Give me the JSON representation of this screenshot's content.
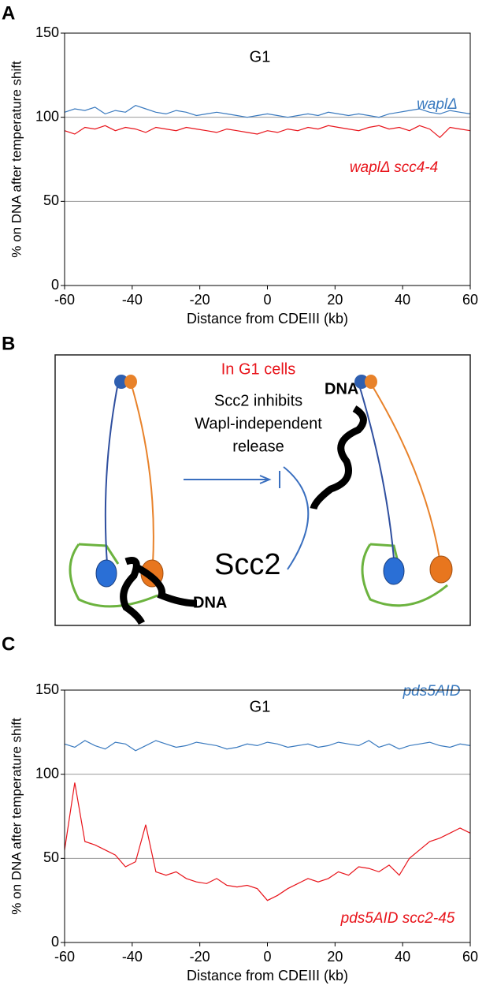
{
  "panel_labels": [
    "A",
    "B",
    "C"
  ],
  "chart_data": [
    {
      "type": "line",
      "title": "G1",
      "x_label": "Distance from CDEIII (kb)",
      "y_label": "% on DNA after temperature shift",
      "x": [
        -60,
        -57,
        -54,
        -51,
        -48,
        -45,
        -42,
        -39,
        -36,
        -33,
        -30,
        -27,
        -24,
        -21,
        -18,
        -15,
        -12,
        -9,
        -6,
        -3,
        0,
        3,
        6,
        9,
        12,
        15,
        18,
        21,
        24,
        27,
        30,
        33,
        36,
        39,
        42,
        45,
        48,
        51,
        54,
        57,
        60
      ],
      "series": [
        {
          "name": "waplΔ",
          "color": "#3a7abf",
          "values": [
            103,
            105,
            104,
            106,
            102,
            104,
            103,
            107,
            105,
            103,
            102,
            104,
            103,
            101,
            102,
            103,
            102,
            101,
            100,
            101,
            102,
            101,
            100,
            101,
            102,
            101,
            103,
            102,
            101,
            102,
            101,
            100,
            102,
            103,
            104,
            105,
            103,
            102,
            104,
            103,
            102
          ]
        },
        {
          "name": "waplΔ scc4-4",
          "color": "#e8141b",
          "values": [
            92,
            90,
            94,
            93,
            95,
            92,
            94,
            93,
            91,
            94,
            93,
            92,
            94,
            93,
            92,
            91,
            93,
            92,
            91,
            90,
            92,
            91,
            93,
            92,
            94,
            93,
            95,
            94,
            93,
            92,
            94,
            95,
            93,
            94,
            92,
            95,
            93,
            88,
            94,
            93,
            92
          ]
        }
      ],
      "xlim": [
        -60,
        60
      ],
      "xticks": [
        -60,
        -40,
        -20,
        0,
        20,
        40,
        60
      ],
      "ylim": [
        0,
        150
      ],
      "yticks": [
        0,
        50,
        100,
        150
      ],
      "grid": true
    },
    {
      "type": "line",
      "title": "G1",
      "x_label": "Distance from CDEIII (kb)",
      "y_label": "% on DNA after temperature shift",
      "x": [
        -60,
        -57,
        -54,
        -51,
        -48,
        -45,
        -42,
        -39,
        -36,
        -33,
        -30,
        -27,
        -24,
        -21,
        -18,
        -15,
        -12,
        -9,
        -6,
        -3,
        0,
        3,
        6,
        9,
        12,
        15,
        18,
        21,
        24,
        27,
        30,
        33,
        36,
        39,
        42,
        45,
        48,
        51,
        54,
        57,
        60
      ],
      "series": [
        {
          "name": "pds5AID",
          "color": "#3a7abf",
          "values": [
            118,
            116,
            120,
            117,
            115,
            119,
            118,
            114,
            117,
            120,
            118,
            116,
            117,
            119,
            118,
            117,
            115,
            116,
            118,
            117,
            119,
            118,
            116,
            117,
            118,
            116,
            117,
            119,
            118,
            117,
            120,
            116,
            118,
            115,
            117,
            118,
            119,
            117,
            116,
            118,
            117
          ]
        },
        {
          "name": "pds5AID scc2-45",
          "color": "#e8141b",
          "values": [
            55,
            95,
            60,
            58,
            55,
            52,
            45,
            48,
            70,
            42,
            40,
            42,
            38,
            36,
            35,
            38,
            34,
            33,
            34,
            32,
            25,
            28,
            32,
            35,
            38,
            36,
            38,
            42,
            40,
            45,
            44,
            42,
            46,
            40,
            50,
            55,
            60,
            62,
            65,
            68,
            65
          ]
        }
      ],
      "xlim": [
        -60,
        60
      ],
      "xticks": [
        -60,
        -40,
        -20,
        0,
        20,
        40,
        60
      ],
      "ylim": [
        0,
        150
      ],
      "yticks": [
        0,
        50,
        100,
        150
      ],
      "grid": true
    }
  ],
  "diagram": {
    "heading": "In G1 cells",
    "statement": [
      "Scc2 inhibits",
      "Wapl-independent",
      "release"
    ],
    "dna_labels": [
      "DNA",
      "DNA"
    ],
    "scc2_label": "Scc2"
  }
}
